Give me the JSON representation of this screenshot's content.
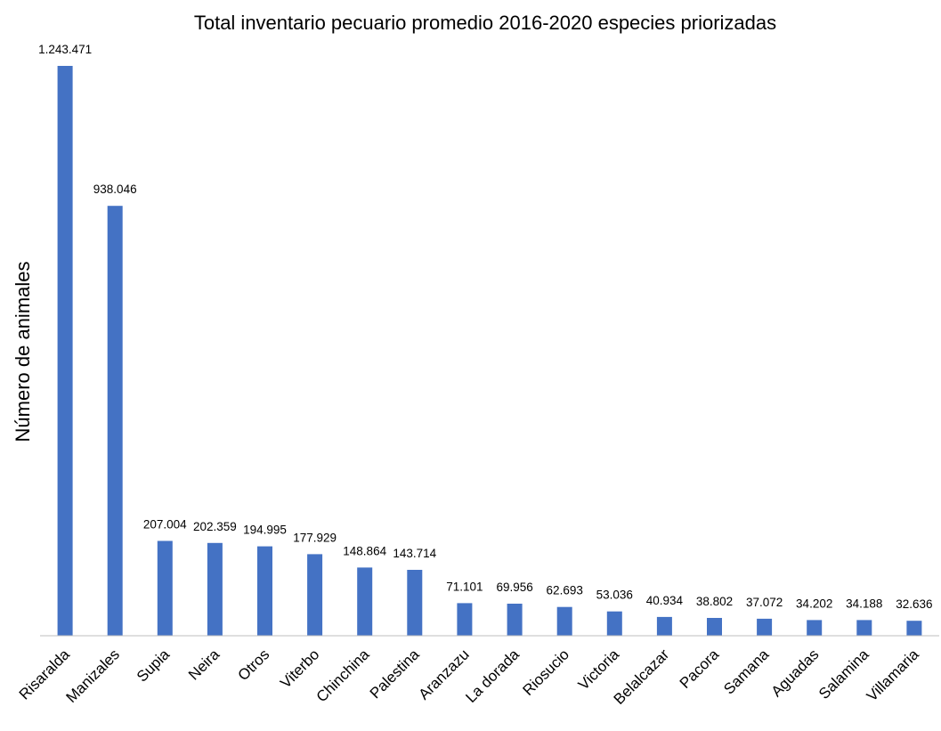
{
  "chart_data": {
    "type": "bar",
    "title": "Total inventario pecuario promedio 2016-2020 especies priorizadas",
    "xlabel": "",
    "ylabel": "Número de animales",
    "categories": [
      "Risaralda",
      "Manizales",
      "Supia",
      "Neira",
      "Otros",
      "Viterbo",
      "Chinchina",
      "Palestina",
      "Aranzazu",
      "La dorada",
      "Riosucio",
      "Victoria",
      "Belalcazar",
      "Pacora",
      "Samana",
      "Aguadas",
      "Salamina",
      "Villamaria"
    ],
    "values": [
      1243471,
      938046,
      207004,
      202359,
      194995,
      177929,
      148864,
      143714,
      71101,
      69956,
      62693,
      53036,
      40934,
      38802,
      37072,
      34202,
      34188,
      32636
    ],
    "data_labels": [
      "1.243.471",
      "938.046",
      "207.004",
      "202.359",
      "194.995",
      "177.929",
      "148.864",
      "143.714",
      "71.101",
      "69.956",
      "62.693",
      "53.036",
      "40.934",
      "38.802",
      "37.072",
      "34.202",
      "34.188",
      "32.636"
    ],
    "ylim": [
      0,
      1243471
    ],
    "grid": false,
    "legend": "none",
    "bar_color": "#4472C4"
  }
}
